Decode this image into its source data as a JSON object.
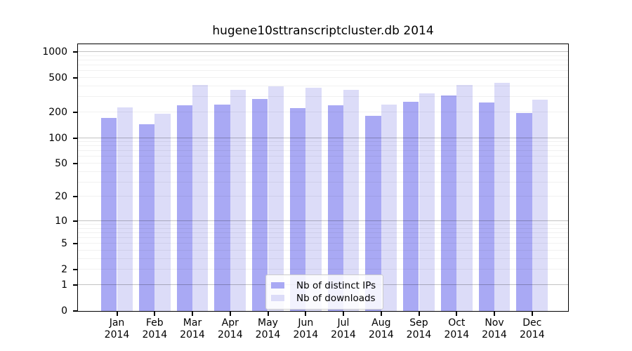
{
  "title": "hugene10sttranscriptcluster.db 2014",
  "colors": {
    "distinct_ips_bar": "#a9a9f4",
    "downloads_bar": "#dcdcf8",
    "axis": "#000000",
    "legend_border": "#cccccc"
  },
  "legend": {
    "items": [
      {
        "label": "Nb of distinct IPs",
        "color": "#a9a9f4"
      },
      {
        "label": "Nb of downloads",
        "color": "#dcdcf8"
      }
    ]
  },
  "chart_data": {
    "type": "bar",
    "title": "hugene10sttranscriptcluster.db 2014",
    "categories": [
      "Jan 2014",
      "Feb 2014",
      "Mar 2014",
      "Apr 2014",
      "May 2014",
      "Jun 2014",
      "Jul 2014",
      "Aug 2014",
      "Sep 2014",
      "Oct 2014",
      "Nov 2014",
      "Dec 2014"
    ],
    "series": [
      {
        "name": "Nb of distinct IPs",
        "color": "#a9a9f4",
        "values": [
          171,
          144,
          239,
          246,
          284,
          224,
          240,
          181,
          262,
          312,
          258,
          194
        ]
      },
      {
        "name": "Nb of downloads",
        "color": "#dcdcf8",
        "values": [
          228,
          193,
          413,
          364,
          398,
          383,
          362,
          243,
          330,
          418,
          437,
          279
        ]
      }
    ],
    "xlabel": "",
    "ylabel": "",
    "y_scale": "log10(value+1)",
    "y_ticks": [
      0,
      1,
      2,
      5,
      10,
      20,
      50,
      100,
      200,
      500,
      1000
    ],
    "y_minor_gridlines": [
      2,
      3,
      4,
      5,
      6,
      7,
      8,
      9,
      20,
      30,
      40,
      50,
      60,
      70,
      80,
      90,
      200,
      300,
      400,
      500,
      600,
      700,
      800,
      900
    ],
    "y_major_gridlines": [
      1,
      10,
      100,
      1000
    ],
    "ylim": [
      0,
      1240
    ],
    "grid": "horizontal",
    "legend_position": "lower center"
  }
}
